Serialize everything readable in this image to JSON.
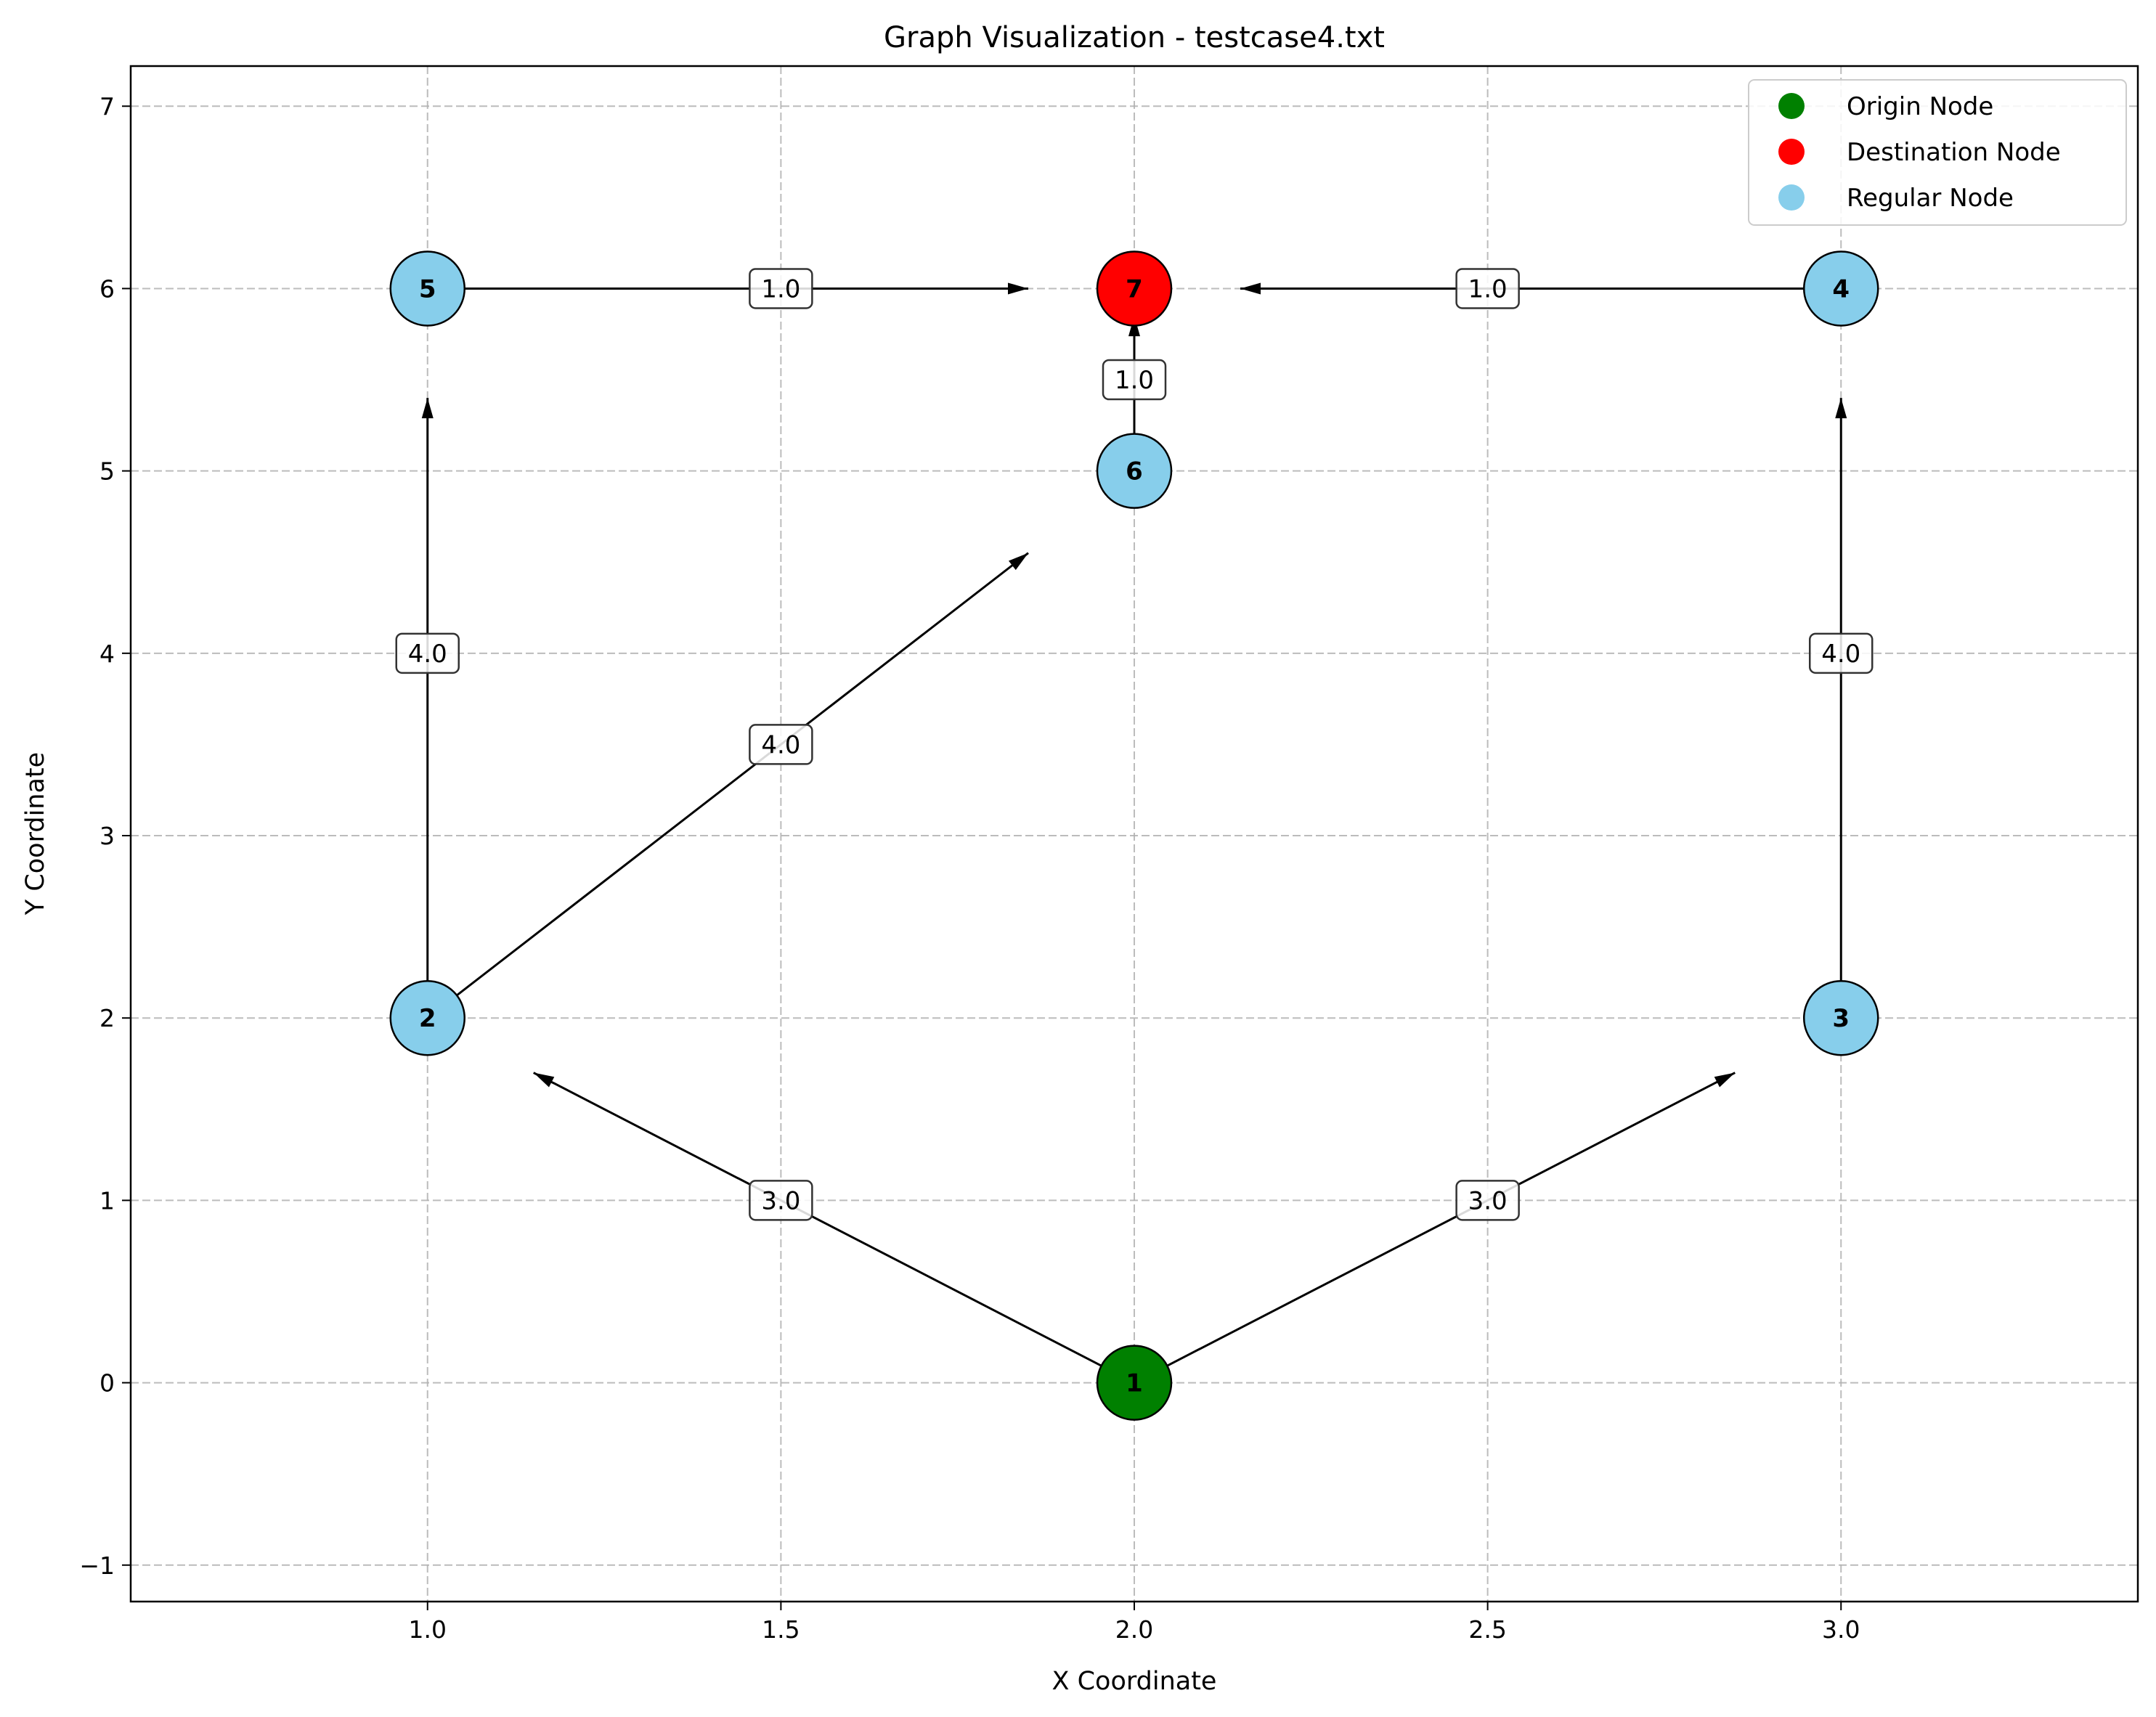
{
  "chart_data": {
    "type": "scatter",
    "title": "Graph Visualization - testcase4.txt",
    "xlabel": "X Coordinate",
    "ylabel": "Y Coordinate",
    "xlim": [
      0.58,
      3.42
    ],
    "ylim": [
      -1.2,
      7.22
    ],
    "xticks": [
      1.0,
      1.5,
      2.0,
      2.5,
      3.0
    ],
    "xtick_labels": [
      "1.0",
      "1.5",
      "2.0",
      "2.5",
      "3.0"
    ],
    "yticks": [
      -1,
      0,
      1,
      2,
      3,
      4,
      5,
      6,
      7
    ],
    "ytick_labels": [
      "−1",
      "0",
      "1",
      "2",
      "3",
      "4",
      "5",
      "6",
      "7"
    ],
    "grid": true,
    "legend_position": "top-right",
    "legend": [
      {
        "label": "Origin Node",
        "color": "#008000"
      },
      {
        "label": "Destination Node",
        "color": "#ff0000"
      },
      {
        "label": "Regular Node",
        "color": "#87ceeb"
      }
    ],
    "nodes": [
      {
        "id": "1",
        "x": 2.0,
        "y": 0,
        "role": "origin",
        "color": "#008000"
      },
      {
        "id": "2",
        "x": 1.0,
        "y": 2,
        "role": "regular",
        "color": "#87ceeb"
      },
      {
        "id": "3",
        "x": 3.0,
        "y": 2,
        "role": "regular",
        "color": "#87ceeb"
      },
      {
        "id": "4",
        "x": 3.0,
        "y": 6,
        "role": "regular",
        "color": "#87ceeb"
      },
      {
        "id": "5",
        "x": 1.0,
        "y": 6,
        "role": "regular",
        "color": "#87ceeb"
      },
      {
        "id": "6",
        "x": 2.0,
        "y": 5,
        "role": "regular",
        "color": "#87ceeb"
      },
      {
        "id": "7",
        "x": 2.0,
        "y": 6,
        "role": "destination",
        "color": "#ff0000"
      }
    ],
    "edges": [
      {
        "from": "1",
        "to": "2",
        "weight": "3.0"
      },
      {
        "from": "1",
        "to": "3",
        "weight": "3.0"
      },
      {
        "from": "2",
        "to": "5",
        "weight": "4.0"
      },
      {
        "from": "2",
        "to": "6",
        "weight": "4.0"
      },
      {
        "from": "3",
        "to": "4",
        "weight": "4.0"
      },
      {
        "from": "5",
        "to": "7",
        "weight": "1.0"
      },
      {
        "from": "4",
        "to": "7",
        "weight": "1.0"
      },
      {
        "from": "6",
        "to": "7",
        "weight": "1.0"
      }
    ]
  }
}
